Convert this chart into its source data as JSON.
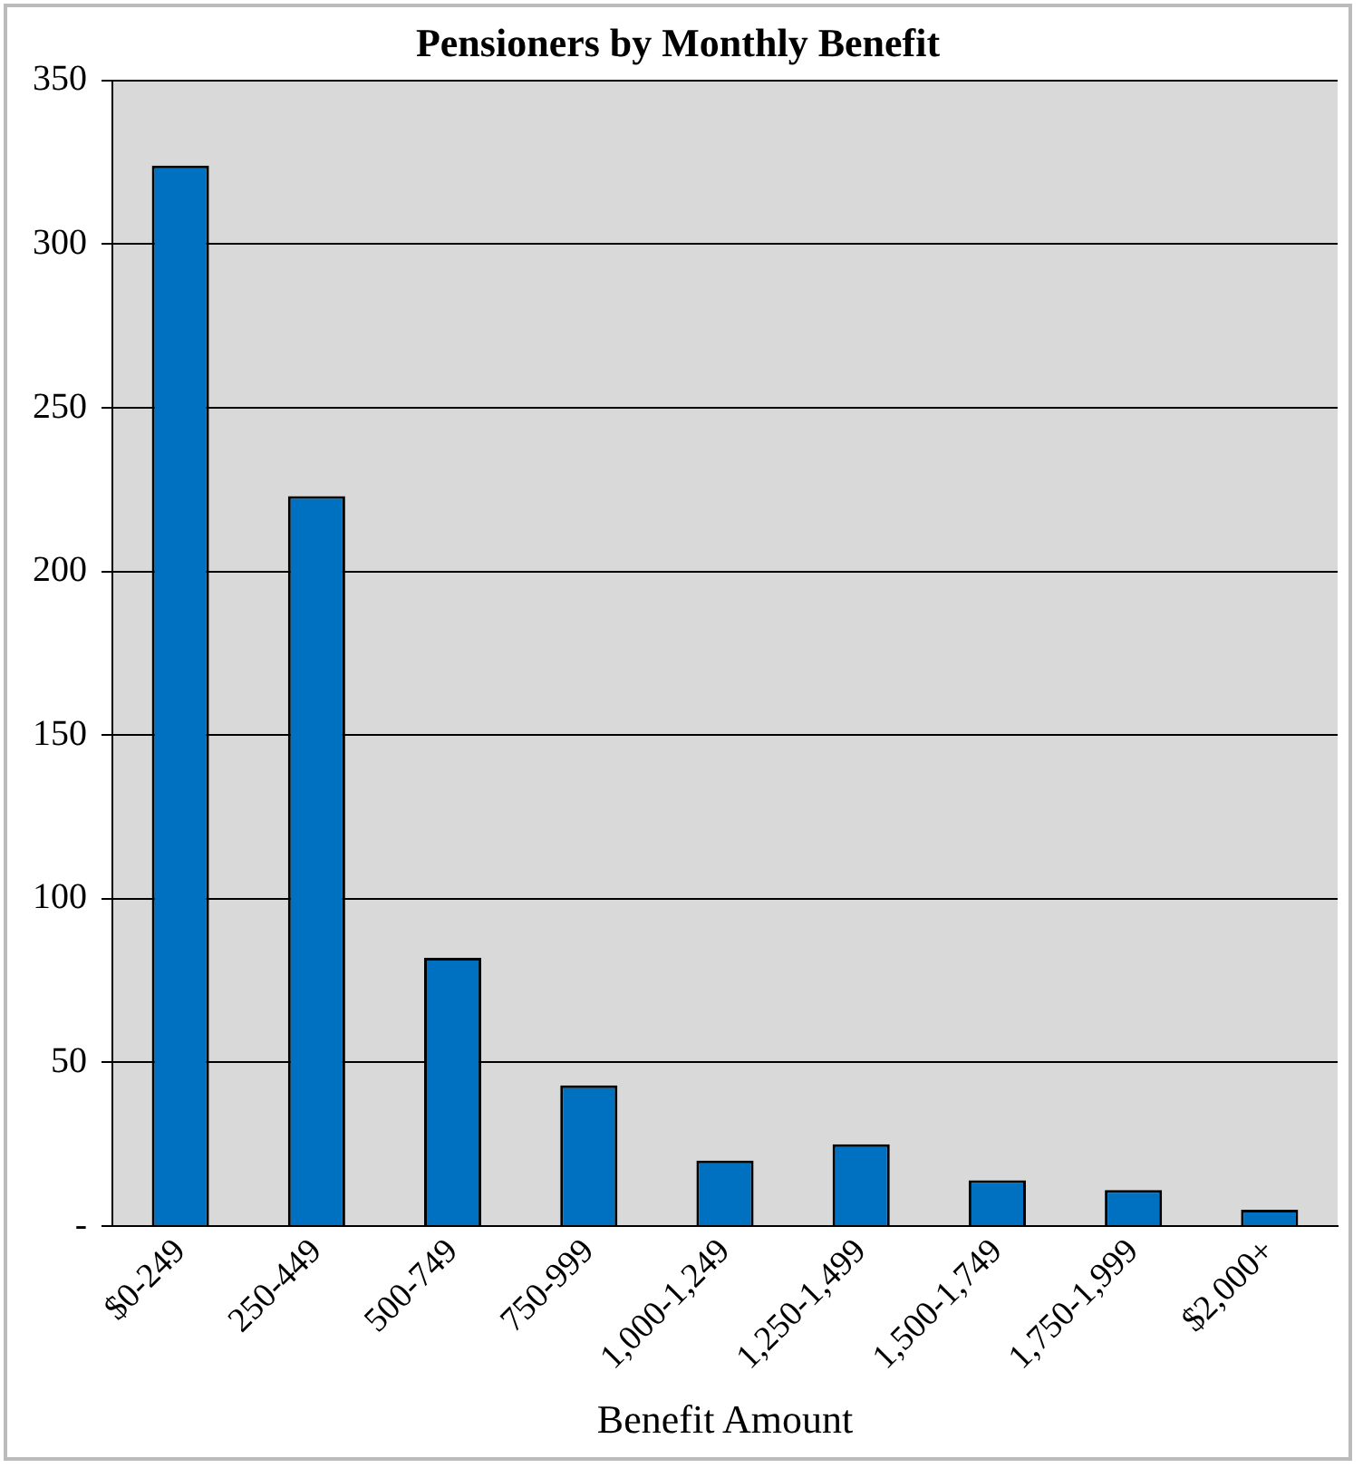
{
  "chart_data": {
    "type": "bar",
    "title": "Pensioners by Monthly Benefit",
    "xlabel": "Benefit Amount",
    "categories": [
      "$0-249",
      "250-449",
      "500-749",
      "750-999",
      "1,000-1,249",
      "1,250-1,499",
      "1,500-1,749",
      "1,750-1,999",
      "$2,000+"
    ],
    "values": [
      324,
      223,
      82,
      43,
      20,
      25,
      14,
      11,
      5
    ],
    "color": "#0070c0",
    "ylim": [
      0,
      350
    ],
    "yticks": [
      {
        "value": 0,
        "label": "-"
      },
      50,
      100,
      150,
      200,
      250,
      300,
      350
    ],
    "grid": "y",
    "legend": false
  }
}
